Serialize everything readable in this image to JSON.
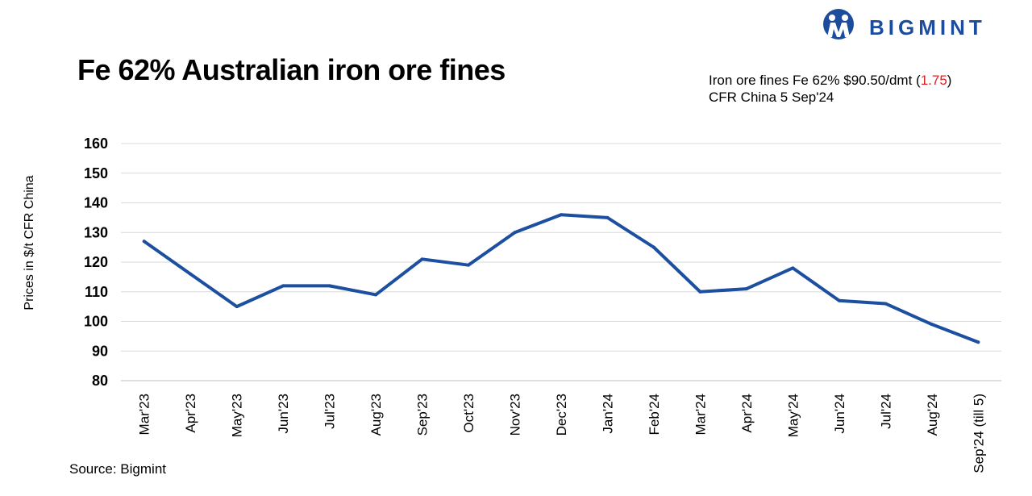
{
  "header": {
    "title": "Fe 62% Australian iron ore fines",
    "info_line1_prefix": "Iron ore fines Fe 62% $90.50/dmt (",
    "info_change": "1.75",
    "info_line1_suffix": ")",
    "info_line2": "CFR China 5 Sep'24",
    "change_color": "#e02020"
  },
  "logo": {
    "text": "BIGMINT",
    "icon": "bigmint-logo-icon",
    "color": "#1c4c9c"
  },
  "source": "Source: Bigmint",
  "chart_data": {
    "type": "line",
    "ylabel": "Prices in $/t CFR China",
    "xlabel": "",
    "ylim": [
      80,
      160
    ],
    "yticks": [
      80,
      90,
      100,
      110,
      120,
      130,
      140,
      150,
      160
    ],
    "grid": true,
    "legend": "none",
    "categories": [
      "Mar'23",
      "Apr'23",
      "May'23",
      "Jun'23",
      "Jul'23",
      "Aug'23",
      "Sep'23",
      "Oct'23",
      "Nov'23",
      "Dec'23",
      "Jan'24",
      "Feb'24",
      "Mar'24",
      "Apr'24",
      "May'24",
      "Jun'24",
      "Jul'24",
      "Aug'24",
      "Sep'24 (till 5)"
    ],
    "series": [
      {
        "values": [
          127,
          116,
          105,
          112,
          112,
          109,
          121,
          119,
          130,
          136,
          135,
          125,
          110,
          111,
          118,
          107,
          106,
          99,
          93
        ],
        "color": "#1c4fa0"
      }
    ]
  }
}
